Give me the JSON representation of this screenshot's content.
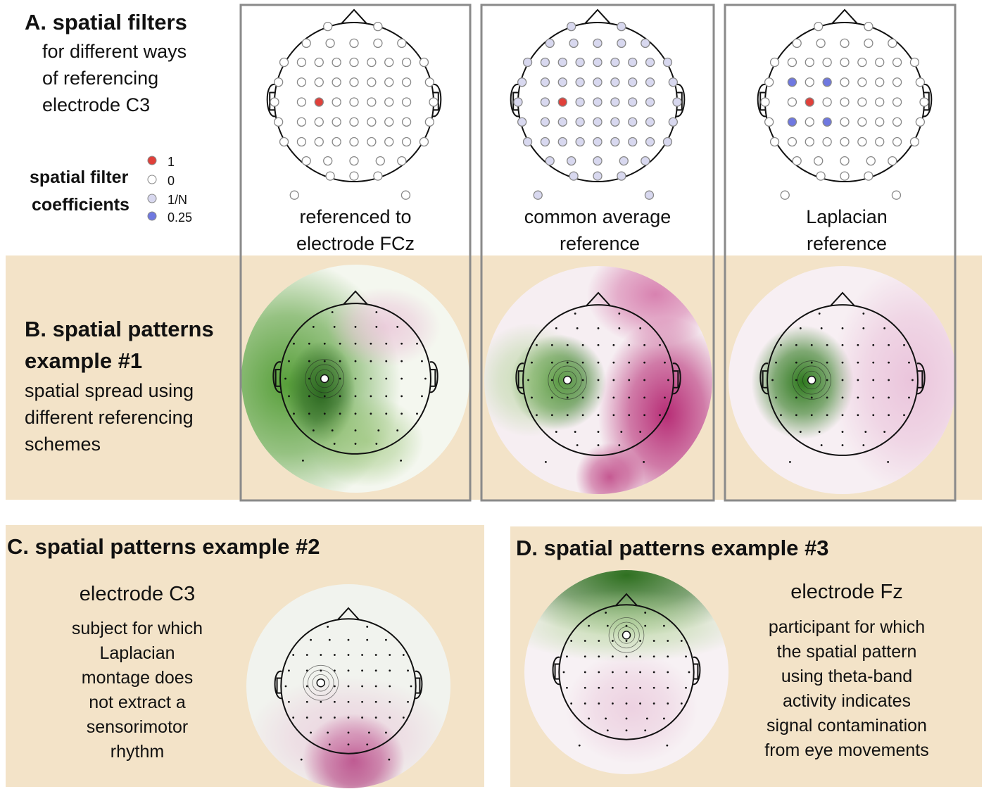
{
  "panel_a": {
    "title": "A. spatial filters",
    "description": [
      "for different ways",
      "of referencing",
      "electrode C3"
    ],
    "legend": {
      "title": [
        "spatial filter",
        "coefficients"
      ],
      "entries": [
        "1",
        "0",
        "1/N",
        "0.25"
      ]
    },
    "columns": [
      {
        "label": [
          "referenced to",
          "electrode FCz"
        ]
      },
      {
        "label": [
          "common average",
          "reference"
        ]
      },
      {
        "label": [
          "Laplacian",
          "reference"
        ]
      }
    ]
  },
  "panel_b": {
    "title": [
      "B. spatial patterns",
      "example #1"
    ],
    "description": [
      "spatial spread using",
      "different referencing",
      "schemes"
    ]
  },
  "panel_c": {
    "title": "C. spatial patterns example #2",
    "subtitle": "electrode C3",
    "description": [
      "subject for which",
      "Laplacian",
      "montage does",
      "not extract a",
      "sensorimotor",
      "rhythm"
    ]
  },
  "panel_d": {
    "title": "D. spatial patterns example #3",
    "subtitle": "electrode Fz",
    "description": [
      "participant for which",
      "the spatial pattern",
      "using theta-band",
      "activity indicates",
      "signal contamination",
      "from eye movements"
    ]
  }
}
